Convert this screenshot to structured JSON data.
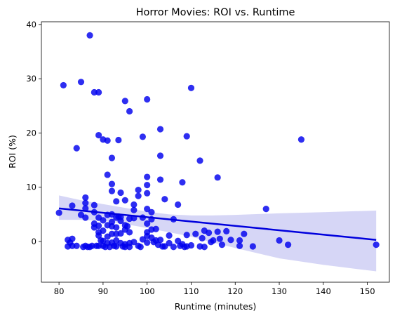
{
  "chart_data": {
    "type": "scatter",
    "title": "Horror Movies: ROI vs. Runtime",
    "xlabel": "Runtime (minutes)",
    "ylabel": "ROI (%)",
    "xlim": [
      76,
      155
    ],
    "ylim": [
      -7.5,
      40.5
    ],
    "xticks": [
      80,
      90,
      100,
      110,
      120,
      130,
      140,
      150
    ],
    "yticks": [
      0,
      10,
      20,
      30,
      40
    ],
    "grid": false,
    "legend": "none",
    "colors": {
      "points": "#0000ee",
      "line": "#0000dd",
      "band": "#cfcff5"
    },
    "points": [
      [
        80,
        5.3
      ],
      [
        81,
        28.8
      ],
      [
        82,
        0.3
      ],
      [
        82,
        -0.9
      ],
      [
        82.5,
        -0.2
      ],
      [
        83,
        6.6
      ],
      [
        83,
        0.5
      ],
      [
        83,
        -0.8
      ],
      [
        84,
        17.2
      ],
      [
        84,
        -0.8
      ],
      [
        85,
        29.4
      ],
      [
        85,
        4.9
      ],
      [
        85.5,
        -1.0
      ],
      [
        86,
        8.1
      ],
      [
        86,
        7.1
      ],
      [
        86,
        6.1
      ],
      [
        86,
        4.4
      ],
      [
        86,
        -0.8
      ],
      [
        86.5,
        -1.0
      ],
      [
        87,
        38.0
      ],
      [
        87,
        -1.0
      ],
      [
        87.5,
        -0.8
      ],
      [
        88,
        27.5
      ],
      [
        88,
        6.7
      ],
      [
        88,
        5.4
      ],
      [
        88,
        3.3
      ],
      [
        88,
        2.6
      ],
      [
        88.5,
        -0.8
      ],
      [
        89,
        27.5
      ],
      [
        89,
        19.6
      ],
      [
        89,
        4.4
      ],
      [
        89,
        2.9
      ],
      [
        89,
        1.7
      ],
      [
        89,
        1.1
      ],
      [
        89,
        -0.8
      ],
      [
        89.5,
        0.2
      ],
      [
        90,
        18.8
      ],
      [
        90,
        3.9
      ],
      [
        90,
        2.0
      ],
      [
        90,
        0.1
      ],
      [
        90,
        -0.8
      ],
      [
        90.5,
        -1.0
      ],
      [
        91,
        18.6
      ],
      [
        91,
        12.3
      ],
      [
        91,
        4.9
      ],
      [
        91,
        3.0
      ],
      [
        91,
        0.9
      ],
      [
        91,
        -0.3
      ],
      [
        91.5,
        -1.0
      ],
      [
        92,
        15.4
      ],
      [
        92,
        10.6
      ],
      [
        92,
        9.3
      ],
      [
        92,
        5.0
      ],
      [
        92,
        3.6
      ],
      [
        92,
        2.8
      ],
      [
        92,
        1.4
      ],
      [
        92,
        -0.2
      ],
      [
        92.5,
        -0.8
      ],
      [
        93,
        7.4
      ],
      [
        93,
        4.4
      ],
      [
        93,
        2.6
      ],
      [
        93,
        1.4
      ],
      [
        93,
        -0.9
      ],
      [
        93,
        0.2
      ],
      [
        93.5,
        4.6
      ],
      [
        93.5,
        18.7
      ],
      [
        94,
        9.0
      ],
      [
        94,
        4.5
      ],
      [
        94,
        3.8
      ],
      [
        94,
        1.5
      ],
      [
        94,
        -0.3
      ],
      [
        94.5,
        -0.9
      ],
      [
        95,
        25.9
      ],
      [
        95,
        7.6
      ],
      [
        95,
        3.0
      ],
      [
        95,
        2.2
      ],
      [
        95,
        -0.5
      ],
      [
        95,
        -1.0
      ],
      [
        95.5,
        2.8
      ],
      [
        96,
        24.0
      ],
      [
        96,
        4.2
      ],
      [
        96,
        1.7
      ],
      [
        96,
        -0.3
      ],
      [
        96,
        -1.0
      ],
      [
        97,
        6.8
      ],
      [
        97,
        5.8
      ],
      [
        97,
        4.3
      ],
      [
        97,
        -0.1
      ],
      [
        98,
        9.5
      ],
      [
        98,
        8.4
      ],
      [
        98,
        -0.8
      ],
      [
        98.5,
        -1.0
      ],
      [
        99,
        19.3
      ],
      [
        99,
        4.4
      ],
      [
        99,
        0.4
      ],
      [
        100,
        26.2
      ],
      [
        100,
        11.9
      ],
      [
        100,
        10.4
      ],
      [
        100,
        8.9
      ],
      [
        100,
        6.0
      ],
      [
        100,
        3.3
      ],
      [
        100,
        1.7
      ],
      [
        100,
        1.0
      ],
      [
        100,
        -0.2
      ],
      [
        101,
        5.4
      ],
      [
        101,
        4.1
      ],
      [
        101,
        2.2
      ],
      [
        101,
        0.7
      ],
      [
        101.5,
        -0.1
      ],
      [
        102,
        2.3
      ],
      [
        102,
        0.2
      ],
      [
        102.5,
        -0.6
      ],
      [
        103,
        20.7
      ],
      [
        103,
        15.8
      ],
      [
        103,
        11.4
      ],
      [
        103,
        0.3
      ],
      [
        103.5,
        -0.9
      ],
      [
        104,
        7.8
      ],
      [
        104,
        -0.9
      ],
      [
        105,
        1.1
      ],
      [
        105,
        -0.3
      ],
      [
        106,
        4.1
      ],
      [
        106,
        -1.0
      ],
      [
        107,
        6.8
      ],
      [
        107,
        0.1
      ],
      [
        107.5,
        -0.8
      ],
      [
        108,
        10.9
      ],
      [
        108,
        -0.5
      ],
      [
        108.5,
        -1.0
      ],
      [
        109,
        19.4
      ],
      [
        109,
        1.2
      ],
      [
        109,
        -0.9
      ],
      [
        110,
        28.3
      ],
      [
        110,
        -0.7
      ],
      [
        111,
        1.4
      ],
      [
        112,
        14.9
      ],
      [
        112,
        -0.9
      ],
      [
        112.5,
        0.6
      ],
      [
        113,
        2.0
      ],
      [
        113,
        -1.0
      ],
      [
        114,
        1.6
      ],
      [
        114.5,
        -0.1
      ],
      [
        115,
        0.2
      ],
      [
        116,
        11.8
      ],
      [
        116,
        1.8
      ],
      [
        116.5,
        0.5
      ],
      [
        117,
        -0.6
      ],
      [
        118,
        1.9
      ],
      [
        119,
        0.3
      ],
      [
        121,
        0.2
      ],
      [
        121,
        -0.8
      ],
      [
        122,
        1.4
      ],
      [
        124,
        -0.9
      ],
      [
        127,
        6.0
      ],
      [
        130,
        0.2
      ],
      [
        132,
        -0.6
      ],
      [
        135,
        18.8
      ],
      [
        152,
        -0.6
      ]
    ],
    "regression": {
      "x": [
        80,
        152
      ],
      "y": [
        6.1,
        0.3
      ]
    },
    "confidence_band": [
      [
        80,
        8.5,
        4.0
      ],
      [
        85,
        7.6,
        4.0
      ],
      [
        90,
        6.9,
        3.8
      ],
      [
        95,
        6.2,
        3.2
      ],
      [
        100,
        5.5,
        2.5
      ],
      [
        105,
        5.0,
        1.7
      ],
      [
        110,
        4.8,
        0.9
      ],
      [
        115,
        4.8,
        -0.2
      ],
      [
        120,
        4.9,
        -1.2
      ],
      [
        130,
        5.2,
        -3.1
      ],
      [
        140,
        5.4,
        -4.3
      ],
      [
        152,
        5.7,
        -5.5
      ]
    ]
  }
}
